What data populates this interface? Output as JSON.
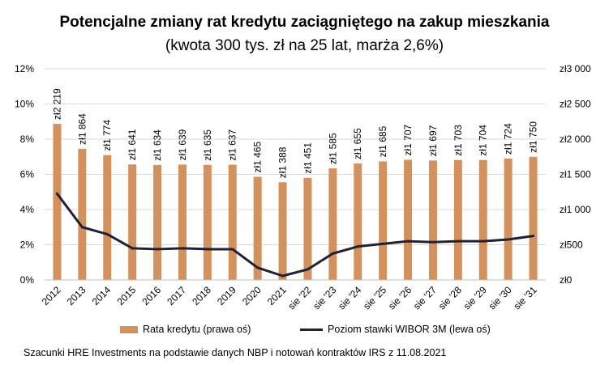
{
  "title": "Potencjalne zmiany rat kredytu zaciągniętego na zakup mieszkania",
  "subtitle": "(kwota 300 tys. zł na 25 lat, marża 2,6%)",
  "footer": "Szacunki HRE Investments na podstawie danych NBP i notowań kontraktów IRS z 11.08.2021",
  "colors": {
    "bar": "#D3915E",
    "line": "#1F2233",
    "grid": "#D9D9D9"
  },
  "chart_data": {
    "type": "bar",
    "categories": [
      "2012",
      "2013",
      "2014",
      "2015",
      "2016",
      "2017",
      "2018",
      "2019",
      "2020",
      "2021",
      "sie '22",
      "sie '23",
      "sie '24",
      "sie '25",
      "sie '26",
      "sie '27",
      "sie '28",
      "sie '29",
      "sie '30",
      "sie '31"
    ],
    "series": [
      {
        "name": "Rata kredytu (prawa oś)",
        "type": "bar",
        "axis": "right",
        "values": [
          2219,
          1864,
          1774,
          1641,
          1634,
          1639,
          1635,
          1637,
          1465,
          1388,
          1451,
          1585,
          1655,
          1685,
          1707,
          1697,
          1703,
          1704,
          1724,
          1750
        ],
        "labels": [
          "zł2 219",
          "zł1 864",
          "zł1 774",
          "zł1 641",
          "zł1 634",
          "zł1 639",
          "zł1 635",
          "zł1 637",
          "zł1 465",
          "zł1 388",
          "zł1 451",
          "zł1 585",
          "zł1 655",
          "zł1 685",
          "zł1 707",
          "zł1 697",
          "zł1 703",
          "zł1 704",
          "zł1 724",
          "zł1 750"
        ]
      },
      {
        "name": "Poziom stawki WIBOR 3M (lewa oś)",
        "type": "line",
        "axis": "left",
        "values": [
          4.9,
          3.0,
          2.6,
          1.8,
          1.75,
          1.8,
          1.75,
          1.75,
          0.7,
          0.23,
          0.6,
          1.5,
          1.9,
          2.05,
          2.2,
          2.15,
          2.2,
          2.2,
          2.3,
          2.5
        ]
      }
    ],
    "y_left": {
      "min": 0,
      "max": 12,
      "ticks": [
        "0%",
        "2%",
        "4%",
        "6%",
        "8%",
        "10%",
        "12%"
      ]
    },
    "y_right": {
      "min": 0,
      "max": 3000,
      "ticks": [
        "zł0",
        "zł500",
        "zł1 000",
        "zł1 500",
        "zł2 000",
        "zł2 500",
        "zł3 000"
      ]
    },
    "grid": true,
    "legend_position": "bottom"
  }
}
